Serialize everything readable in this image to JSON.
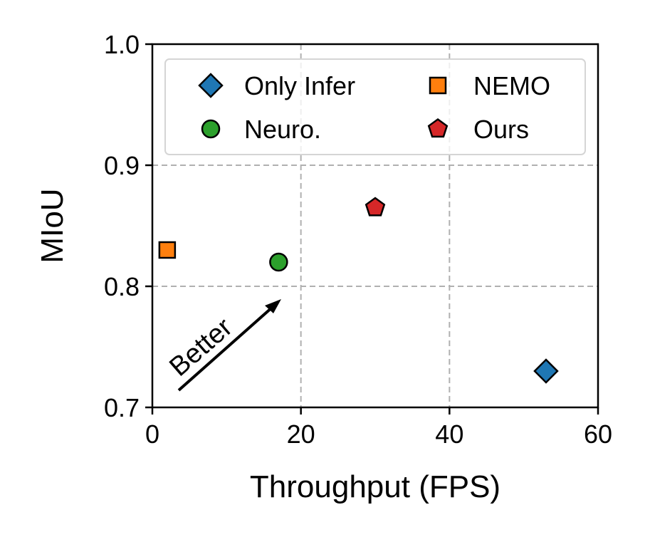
{
  "chart_data": {
    "type": "scatter",
    "title": "",
    "xlabel": "Throughput (FPS)",
    "ylabel": "MIoU",
    "xlim": [
      0,
      60
    ],
    "ylim": [
      0.7,
      1.0
    ],
    "xticks": [
      0,
      20,
      40,
      60
    ],
    "xtick_labels": [
      "0",
      "20",
      "40",
      "60"
    ],
    "yticks": [
      0.7,
      0.8,
      0.9,
      1.0
    ],
    "ytick_labels": [
      "0.7",
      "0.8",
      "0.9",
      "1.0"
    ],
    "grid": true,
    "legend_position": "top",
    "series": [
      {
        "name": "Only Infer",
        "marker": "diamond",
        "color": "#1f77b4",
        "x": [
          53
        ],
        "y": [
          0.73
        ]
      },
      {
        "name": "NEMO",
        "marker": "square",
        "color": "#ff7f0e",
        "x": [
          2
        ],
        "y": [
          0.83
        ]
      },
      {
        "name": "Neuro.",
        "marker": "circle",
        "color": "#2ca02c",
        "x": [
          17
        ],
        "y": [
          0.82
        ]
      },
      {
        "name": "Ours",
        "marker": "pentagon",
        "color": "#d62728",
        "x": [
          30
        ],
        "y": [
          0.865
        ]
      }
    ],
    "annotation": {
      "text": "Better",
      "arrow": "up-right"
    }
  }
}
